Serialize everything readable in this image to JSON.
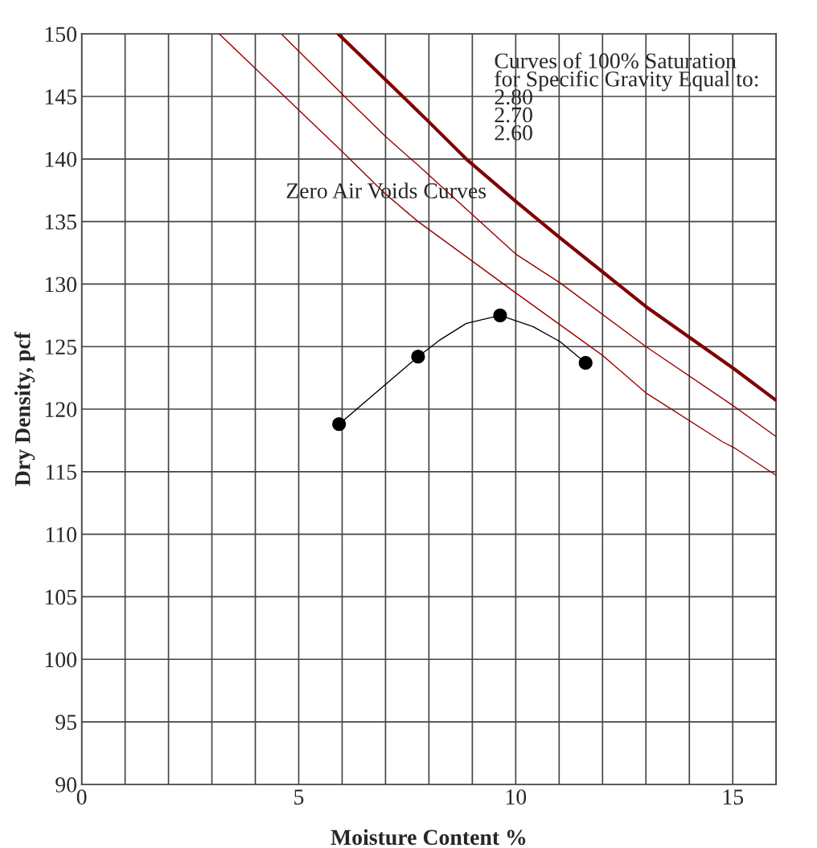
{
  "chart_data": {
    "type": "line",
    "xlabel": "Moisture Content %",
    "ylabel": "Dry Density, pcf",
    "xlim": [
      0,
      16
    ],
    "ylim": [
      90,
      150
    ],
    "xticks": [
      0,
      {
        "value": 1,
        "label": null
      },
      {
        "value": 2,
        "label": null
      },
      {
        "value": 3,
        "label": null
      },
      {
        "value": 4,
        "label": null
      },
      5,
      {
        "value": 6,
        "label": null
      },
      {
        "value": 7,
        "label": null
      },
      {
        "value": 8,
        "label": null
      },
      {
        "value": 9,
        "label": null
      },
      10,
      {
        "value": 11,
        "label": null
      },
      {
        "value": 12,
        "label": null
      },
      {
        "value": 13,
        "label": null
      },
      {
        "value": 14,
        "label": null
      },
      15,
      {
        "value": 16,
        "label": null
      }
    ],
    "yticks": [
      90,
      95,
      100,
      105,
      110,
      115,
      120,
      125,
      130,
      135,
      140,
      145,
      150
    ],
    "grid": true,
    "series": [
      {
        "color": "#800000",
        "x": [
          5.91,
          7.01,
          7.99,
          8.86,
          9.97,
          11.02,
          13.0,
          15.04,
          16.0
        ],
        "values": [
          150,
          146.3,
          143.0,
          140.0,
          136.7,
          133.7,
          128.2,
          123.2,
          120.7
        ]
      },
      {
        "color": "#990000",
        "x": [
          4.6,
          6.0,
          7.0,
          7.75,
          10.0,
          11.02,
          13.0,
          15.0,
          16.0
        ],
        "values": [
          150,
          145.2,
          141.8,
          139.5,
          132.4,
          130.1,
          125.0,
          120.3,
          117.8
        ]
      },
      {
        "color": "#990000",
        "x": [
          3.17,
          6.0,
          7.0,
          7.75,
          10.0,
          12.0,
          13.0,
          14.76,
          15.04,
          16.0
        ],
        "values": [
          150,
          140.6,
          137.2,
          135.0,
          129.3,
          124.3,
          121.3,
          117.4,
          116.9,
          114.7
        ]
      },
      {
        "color": "#000000",
        "x": [
          5.93,
          7.75,
          8.24,
          8.86,
          9.64,
          10.4,
          11.02,
          11.61
        ],
        "values": [
          118.8,
          124.2,
          125.5,
          126.85,
          127.5,
          126.6,
          125.4,
          123.7
        ]
      },
      {
        "type": "scatter",
        "color": "#000000",
        "marker": "circle",
        "x": [
          5.93,
          7.75,
          9.64,
          11.61
        ],
        "values": [
          118.8,
          124.2,
          127.5,
          123.7
        ]
      }
    ],
    "annotations": [
      "Zero Air Voids Curves",
      "Curves of 100% Saturation\nfor Specific Gravity Equal to:\n2.80\n2.70\n2.60"
    ]
  }
}
